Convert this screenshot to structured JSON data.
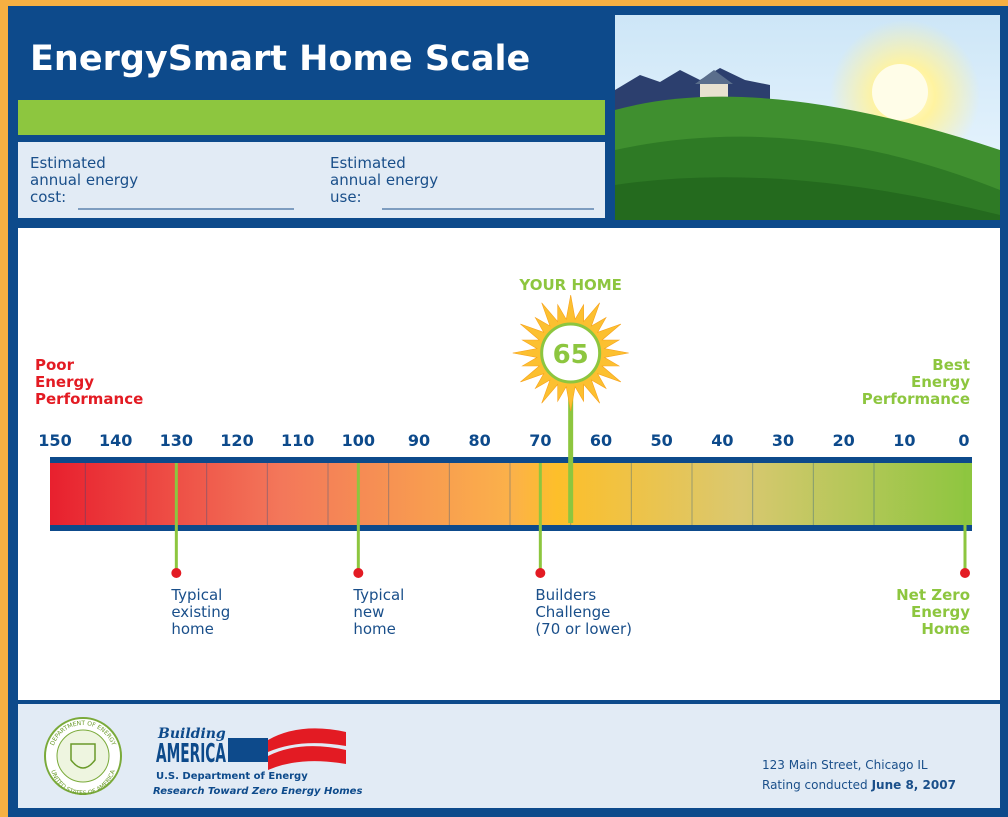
{
  "header": {
    "title": "EnergySmart Home Scale",
    "cost_label": [
      "Estimated",
      "annual energy",
      "cost:"
    ],
    "use_label": [
      "Estimated",
      "annual energy",
      "use:"
    ]
  },
  "scale": {
    "poor_label": [
      "Poor",
      "Energy",
      "Performance"
    ],
    "best_label": [
      "Best",
      "Energy",
      "Performance"
    ],
    "range": [
      150,
      0
    ],
    "ticks": [
      150,
      140,
      130,
      120,
      110,
      100,
      90,
      80,
      70,
      60,
      50,
      40,
      30,
      20,
      10,
      0
    ],
    "your_home": {
      "label": "YOUR HOME",
      "value": 65
    },
    "markers": [
      {
        "value": 130,
        "label": [
          "Typical",
          "existing",
          "home"
        ]
      },
      {
        "value": 100,
        "label": [
          "Typical",
          "new",
          "home"
        ]
      },
      {
        "value": 70,
        "label": [
          "Builders",
          "Challenge",
          "(70 or lower)"
        ]
      },
      {
        "value": 0,
        "label": [
          "Net Zero",
          "Energy",
          "Home"
        ]
      }
    ]
  },
  "footer": {
    "seal": [
      "DEPARTMENT OF ENERGY",
      "UNITED STATES OF AMERICA"
    ],
    "logo": [
      "Building",
      "AMERICA",
      "U.S. Department of Energy",
      "Research Toward Zero Energy Homes"
    ],
    "address": "123 Main Street, Chicago IL",
    "rating_prefix": "Rating conducted",
    "rating_date": "June 8, 2007"
  }
}
